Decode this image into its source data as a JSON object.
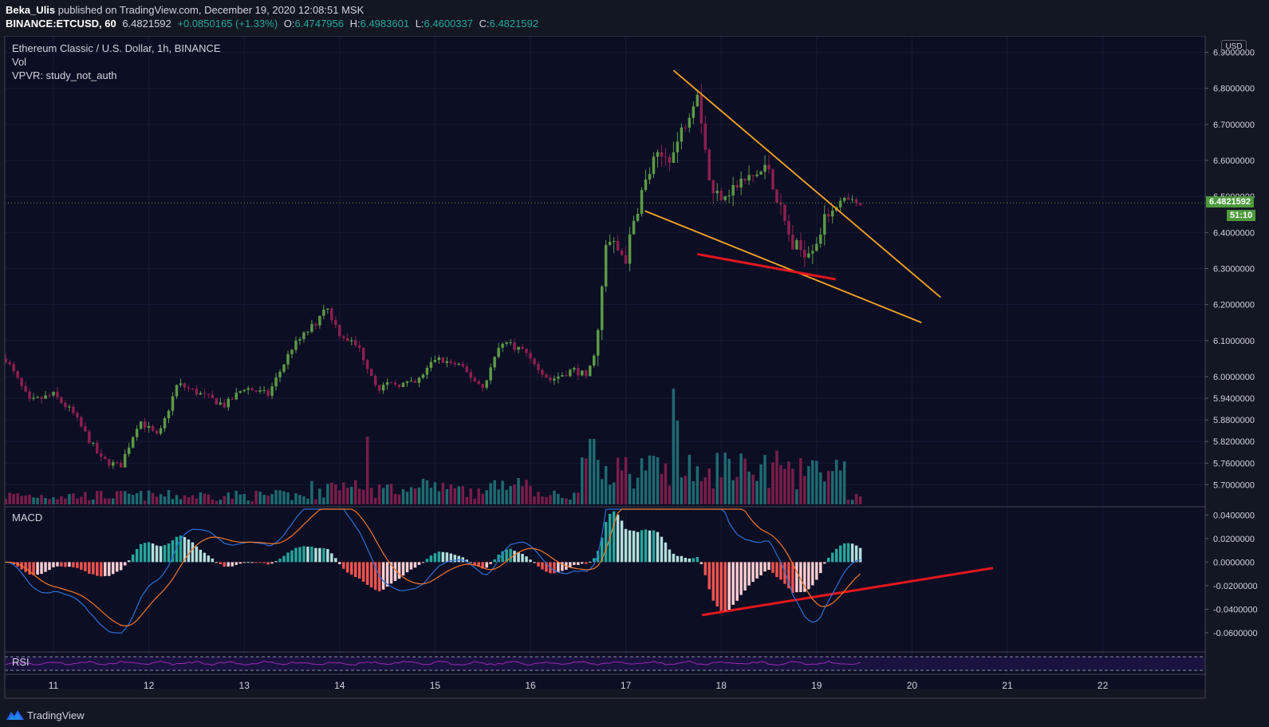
{
  "header": {
    "user": "Beka_Ulis",
    "published_text": " published on TradingView.com, December 19, 2020 12:08:51 MSK",
    "symbol": "BINANCE:ETCUSD, 60",
    "last": "6.4821592",
    "change": "+0.0850165 (+1.33%)",
    "o_label": "O:",
    "o_val": "6.4747956",
    "h_label": "H:",
    "h_val": "6.4983601",
    "l_label": "L:",
    "l_val": "6.4600337",
    "c_label": "C:",
    "c_val": "6.4821592"
  },
  "legend": {
    "title": "Ethereum Classic / U.S. Dollar, 1h, BINANCE",
    "vol": "Vol",
    "vpvr": "VPVR: study_not_auth",
    "macd": "MACD",
    "rsi": "RSI"
  },
  "currency": "USD",
  "price_tag": "6.4821592",
  "countdown": "51:10",
  "footer": {
    "brand": "TradingView"
  },
  "colors": {
    "bg": "#0c0e24",
    "up": "#5b9a45",
    "down": "#8e1f4f",
    "vol_up": "#1e6b70",
    "vol_down": "#7a1d4a",
    "trend_orange": "#f5a623",
    "trend_red": "#e3171c",
    "macd_line": "#2d6fd6",
    "signal_line": "#f0782a",
    "rsi_line": "#9c27b0"
  },
  "chart_data": {
    "type": "candlestick",
    "title": "Ethereum Classic / U.S. Dollar, 1h, BINANCE",
    "price_axis": {
      "min": 5.65,
      "max": 6.95,
      "ticks": [
        "6.9000000",
        "6.8000000",
        "6.7000000",
        "6.6000000",
        "6.5000000",
        "6.4000000",
        "6.3000000",
        "6.2000000",
        "6.1000000",
        "6.0000000",
        "5.9400000",
        "5.8800000",
        "5.8200000",
        "5.7600000",
        "5.7000000"
      ]
    },
    "macd_axis": {
      "min": -0.075,
      "max": 0.045,
      "ticks": [
        "0.0400000",
        "0.0200000",
        "0.0000000",
        "-0.0200000",
        "-0.0400000",
        "-0.0600000"
      ]
    },
    "x_axis": {
      "ticks": [
        "11",
        "12",
        "13",
        "14",
        "15",
        "16",
        "17",
        "18",
        "19",
        "20",
        "21",
        "22"
      ]
    },
    "price_path_hourly_closes_approx": [
      [
        10.5,
        6.05
      ],
      [
        10.75,
        5.93
      ],
      [
        11.0,
        5.95
      ],
      [
        11.2,
        5.9
      ],
      [
        11.5,
        5.77
      ],
      [
        11.7,
        5.75
      ],
      [
        11.9,
        5.88
      ],
      [
        12.1,
        5.83
      ],
      [
        12.3,
        5.98
      ],
      [
        12.55,
        5.95
      ],
      [
        12.8,
        5.92
      ],
      [
        13.0,
        5.97
      ],
      [
        13.25,
        5.95
      ],
      [
        13.5,
        6.08
      ],
      [
        13.75,
        6.15
      ],
      [
        13.85,
        6.2
      ],
      [
        14.0,
        6.12
      ],
      [
        14.2,
        6.08
      ],
      [
        14.4,
        5.97
      ],
      [
        14.6,
        5.98
      ],
      [
        14.8,
        5.98
      ],
      [
        15.0,
        6.05
      ],
      [
        15.25,
        6.03
      ],
      [
        15.5,
        5.97
      ],
      [
        15.7,
        6.1
      ],
      [
        15.95,
        6.07
      ],
      [
        16.2,
        5.99
      ],
      [
        16.45,
        6.02
      ],
      [
        16.6,
        6.0
      ],
      [
        16.7,
        6.1
      ],
      [
        16.8,
        6.38
      ],
      [
        17.0,
        6.33
      ],
      [
        17.15,
        6.5
      ],
      [
        17.3,
        6.6
      ],
      [
        17.5,
        6.62
      ],
      [
        17.75,
        6.8
      ],
      [
        17.9,
        6.5
      ],
      [
        18.1,
        6.52
      ],
      [
        18.3,
        6.55
      ],
      [
        18.5,
        6.58
      ],
      [
        18.6,
        6.48
      ],
      [
        18.75,
        6.36
      ],
      [
        18.9,
        6.35
      ],
      [
        19.0,
        6.38
      ],
      [
        19.15,
        6.47
      ],
      [
        19.3,
        6.49
      ],
      [
        19.45,
        6.48
      ]
    ],
    "annotations": [
      {
        "type": "trendline",
        "color": "orange",
        "from": [
          17.5,
          6.85
        ],
        "to": [
          20.3,
          6.22
        ]
      },
      {
        "type": "trendline",
        "color": "orange",
        "from": [
          17.2,
          6.46
        ],
        "to": [
          20.1,
          6.15
        ]
      },
      {
        "type": "trendline",
        "color": "red",
        "from": [
          17.75,
          6.34
        ],
        "to": [
          19.2,
          6.27
        ]
      },
      {
        "type": "trendline",
        "color": "red",
        "pane": "macd",
        "from": [
          17.8,
          -0.045
        ],
        "to": [
          20.85,
          -0.005
        ]
      }
    ]
  }
}
